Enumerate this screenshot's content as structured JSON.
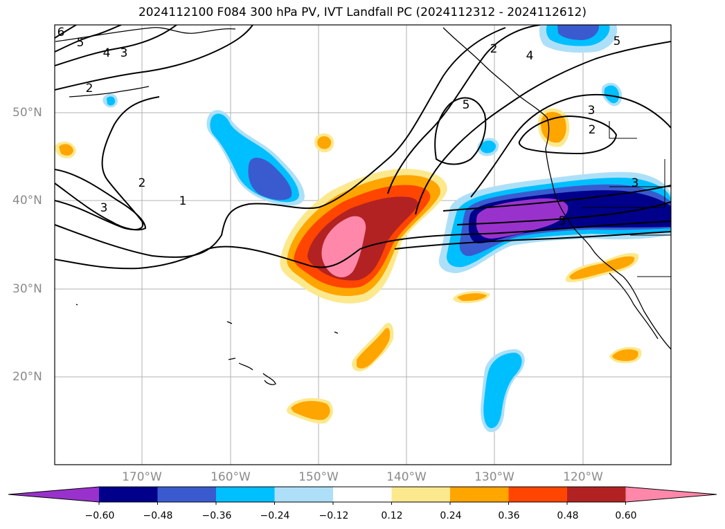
{
  "title": "2024112100 F084 300 hPa PV, IVT Landfall PC (2024112312 - 2024112612)",
  "lat_labels": [
    "50°N",
    "40°N",
    "30°N",
    "20°N"
  ],
  "lon_labels": [
    "170°W",
    "160°W",
    "150°W",
    "140°W",
    "130°W",
    "120°W"
  ],
  "colorbar": {
    "ticks": [
      "−0.60",
      "−0.48",
      "−0.36",
      "−0.24",
      "−0.12",
      "0.12",
      "0.24",
      "0.36",
      "0.48",
      "0.60"
    ],
    "colors": [
      "#9932CC",
      "#00008B",
      "#3A5BCF",
      "#00BFFF",
      "#ADE0F8",
      "#FFFFFF",
      "#FCE98E",
      "#FFA500",
      "#FF4500",
      "#B22222",
      "#FF88AA"
    ]
  },
  "contour_labels": [
    "6",
    "5",
    "4",
    "3",
    "2",
    "2",
    "3",
    "1",
    "2",
    "5",
    "4",
    "5",
    "3",
    "2",
    "3",
    "5"
  ]
}
